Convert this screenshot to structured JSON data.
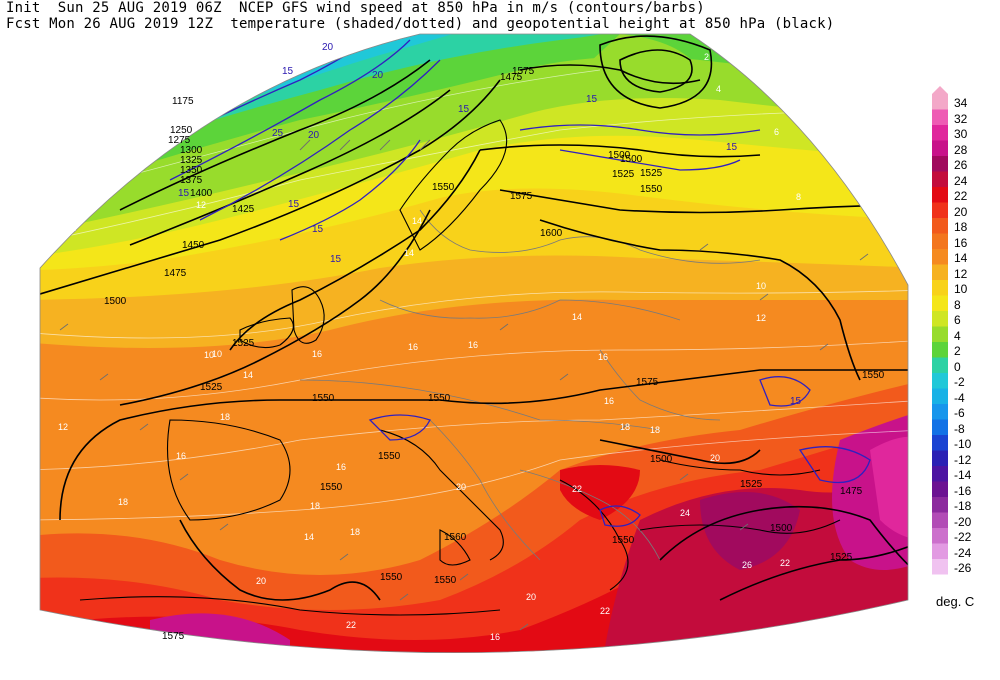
{
  "header": {
    "line1": "Init  Sun 25 AUG 2019 06Z  NCEP GFS wind speed at 850 hPa in m/s (contours/barbs)",
    "line2": "Fcst Mon 26 AUG 2019 12Z  temperature (shaded/dotted) and geopotential height at 850 hPa (black)"
  },
  "colorbar": {
    "unit": "deg. C",
    "levels": [
      34,
      32,
      30,
      28,
      26,
      24,
      22,
      20,
      18,
      16,
      14,
      12,
      10,
      8,
      6,
      4,
      2,
      0,
      -2,
      -4,
      -6,
      -8,
      -10,
      -12,
      -14,
      -16,
      -18,
      -20,
      -22,
      -24,
      -26
    ],
    "colors": [
      "#f3a8c8",
      "#ee5cb4",
      "#e0279c",
      "#c8128a",
      "#a10a5e",
      "#c30c3c",
      "#e30a14",
      "#f0321a",
      "#f25a1c",
      "#f3761e",
      "#f58a20",
      "#f6b221",
      "#f8d21a",
      "#f4e619",
      "#cfe624",
      "#98dc2c",
      "#5cd43a",
      "#2cd2a4",
      "#20c8d8",
      "#18b2e6",
      "#1796ec",
      "#1272e6",
      "#1a44d2",
      "#2a20b4",
      "#4c14a2",
      "#6c1292",
      "#8c2a9e",
      "#b24cb6",
      "#cc70cc",
      "#e29ae2",
      "#f0c2f0"
    ]
  },
  "map": {
    "height_labels": [
      {
        "t": "1175"
      },
      {
        "t": "1250"
      },
      {
        "t": "1275"
      },
      {
        "t": "1300"
      },
      {
        "t": "1325"
      },
      {
        "t": "1350"
      },
      {
        "t": "1375"
      },
      {
        "t": "1400"
      },
      {
        "t": "1425"
      },
      {
        "t": "1450"
      },
      {
        "t": "1475"
      },
      {
        "t": "1500"
      },
      {
        "t": "1525"
      },
      {
        "t": "1525"
      },
      {
        "t": "1550"
      },
      {
        "t": "1550"
      },
      {
        "t": "1550"
      },
      {
        "t": "1550"
      },
      {
        "t": "1560"
      },
      {
        "t": "1550"
      },
      {
        "t": "1550"
      },
      {
        "t": "1575"
      },
      {
        "t": "1600"
      },
      {
        "t": "1575"
      },
      {
        "t": "1525"
      },
      {
        "t": "1500"
      },
      {
        "t": "1475"
      },
      {
        "t": "1500"
      },
      {
        "t": "1525"
      },
      {
        "t": "1550"
      },
      {
        "t": "1550"
      },
      {
        "t": "1575"
      },
      {
        "t": "1500"
      },
      {
        "t": "1475"
      },
      {
        "t": "1500"
      },
      {
        "t": "1525"
      },
      {
        "t": "1550"
      },
      {
        "t": "1575"
      },
      {
        "t": "1550"
      },
      {
        "t": "1525"
      }
    ],
    "wind_labels": [
      {
        "t": "20"
      },
      {
        "t": "15"
      },
      {
        "t": "20"
      },
      {
        "t": "25"
      },
      {
        "t": "20"
      },
      {
        "t": "15"
      },
      {
        "t": "15"
      },
      {
        "t": "15"
      },
      {
        "t": "15"
      },
      {
        "t": "15"
      },
      {
        "t": "15"
      },
      {
        "t": "15"
      },
      {
        "t": "15"
      }
    ],
    "temp_labels": [
      {
        "t": "12"
      },
      {
        "t": "10"
      },
      {
        "t": "12"
      },
      {
        "t": "14"
      },
      {
        "t": "16"
      },
      {
        "t": "18"
      },
      {
        "t": "16"
      },
      {
        "t": "14"
      },
      {
        "t": "16"
      },
      {
        "t": "18"
      },
      {
        "t": "18"
      },
      {
        "t": "20"
      },
      {
        "t": "22"
      },
      {
        "t": "22"
      },
      {
        "t": "24"
      },
      {
        "t": "26"
      },
      {
        "t": "22"
      },
      {
        "t": "20"
      },
      {
        "t": "18"
      },
      {
        "t": "16"
      },
      {
        "t": "14"
      },
      {
        "t": "12"
      },
      {
        "t": "10"
      },
      {
        "t": "8"
      },
      {
        "t": "6"
      },
      {
        "t": "4"
      },
      {
        "t": "2"
      },
      {
        "t": "12"
      },
      {
        "t": "10"
      },
      {
        "t": "14"
      },
      {
        "t": "16"
      },
      {
        "t": "18"
      },
      {
        "t": "20"
      },
      {
        "t": "22"
      },
      {
        "t": "24"
      },
      {
        "t": "26"
      },
      {
        "t": "16"
      },
      {
        "t": "16"
      },
      {
        "t": "18"
      },
      {
        "t": "20"
      },
      {
        "t": "22"
      },
      {
        "t": "12"
      },
      {
        "t": "14"
      },
      {
        "t": "16"
      }
    ]
  }
}
